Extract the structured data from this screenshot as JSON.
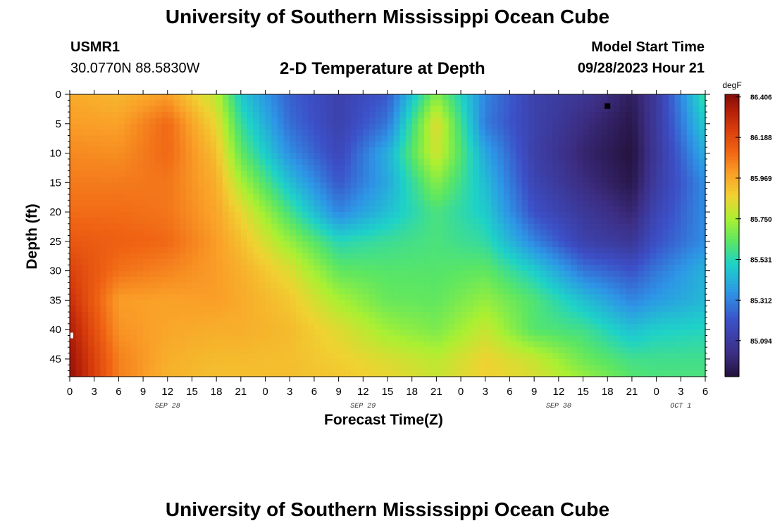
{
  "header": {
    "title": "University of Southern Mississippi Ocean Cube",
    "station_id": "USMR1",
    "coordinates": "30.0770N  88.5830W",
    "plot_title": "2-D Temperature at Depth",
    "model_start_label": "Model Start Time",
    "model_start_value": "09/28/2023 Hour 21"
  },
  "footer": {
    "title": "University of Southern Mississippi Ocean Cube"
  },
  "chart_data": {
    "type": "heatmap",
    "title": "2-D Temperature at Depth",
    "xlabel": "Forecast Time(Z)",
    "ylabel": "Depth (ft)",
    "xlim": [
      0,
      78
    ],
    "ylim": [
      48,
      0
    ],
    "x_tick_values": [
      0,
      3,
      6,
      9,
      12,
      15,
      18,
      21,
      24,
      27,
      30,
      33,
      36,
      39,
      42,
      45,
      48,
      51,
      54,
      57,
      60,
      63,
      66,
      69,
      72,
      75,
      78
    ],
    "x_tick_labels": [
      "0",
      "3",
      "6",
      "9",
      "12",
      "15",
      "18",
      "21",
      "0",
      "3",
      "6",
      "9",
      "12",
      "15",
      "18",
      "21",
      "0",
      "3",
      "6",
      "9",
      "12",
      "15",
      "18",
      "21",
      "0",
      "3",
      "6"
    ],
    "date_labels": [
      {
        "x": 12,
        "text": "SEP 28"
      },
      {
        "x": 36,
        "text": "SEP 29"
      },
      {
        "x": 60,
        "text": "SEP 30"
      },
      {
        "x": 75,
        "text": "OCT 1"
      }
    ],
    "y_ticks": [
      0,
      5,
      10,
      15,
      20,
      25,
      30,
      35,
      40,
      45
    ],
    "colorbar": {
      "unit": "degF",
      "min": 84.9,
      "max": 86.42,
      "ticks": [
        86.406,
        86.188,
        85.969,
        85.75,
        85.531,
        85.312,
        85.094
      ],
      "tick_labels": [
        "86.406",
        "86.188",
        "85.969",
        "85.750",
        "85.531",
        "85.312",
        "85.094"
      ]
    },
    "grid": false,
    "legend": "right",
    "times": [
      0,
      6,
      12,
      18,
      21,
      27,
      33,
      39,
      45,
      51,
      57,
      63,
      69,
      72,
      78
    ],
    "depths": [
      0,
      5,
      10,
      15,
      20,
      25,
      30,
      35,
      40,
      45,
      48
    ],
    "values": [
      [
        85.97,
        85.94,
        86.0,
        85.78,
        85.48,
        85.24,
        85.13,
        85.22,
        85.7,
        85.32,
        85.13,
        85.07,
        84.96,
        85.09,
        85.57
      ],
      [
        86.0,
        85.99,
        86.11,
        85.86,
        85.56,
        85.27,
        85.13,
        85.29,
        85.85,
        85.3,
        85.13,
        85.02,
        84.93,
        85.09,
        85.5
      ],
      [
        86.04,
        86.03,
        86.11,
        85.92,
        85.64,
        85.34,
        85.16,
        85.42,
        85.82,
        85.4,
        85.12,
        84.99,
        84.91,
        85.08,
        85.42
      ],
      [
        86.07,
        86.07,
        86.08,
        85.96,
        85.75,
        85.46,
        85.22,
        85.4,
        85.7,
        85.45,
        85.15,
        85.02,
        84.93,
        85.1,
        85.34
      ],
      [
        86.1,
        86.1,
        86.08,
        85.98,
        85.86,
        85.59,
        85.32,
        85.46,
        85.6,
        85.49,
        85.2,
        85.08,
        84.99,
        85.15,
        85.34
      ],
      [
        86.15,
        86.13,
        86.11,
        86.0,
        85.92,
        85.72,
        85.53,
        85.57,
        85.6,
        85.55,
        85.32,
        85.13,
        85.07,
        85.2,
        85.34
      ],
      [
        86.22,
        86.09,
        86.05,
        86.0,
        85.96,
        85.84,
        85.64,
        85.62,
        85.62,
        85.64,
        85.5,
        85.29,
        85.21,
        85.29,
        85.43
      ],
      [
        86.28,
        86.0,
        85.99,
        86.0,
        85.97,
        85.9,
        85.75,
        85.65,
        85.64,
        85.72,
        85.61,
        85.46,
        85.32,
        85.37,
        85.44
      ],
      [
        86.34,
        86.02,
        85.98,
        85.96,
        85.96,
        85.93,
        85.84,
        85.73,
        85.68,
        85.8,
        85.62,
        85.58,
        85.46,
        85.5,
        85.52
      ],
      [
        86.38,
        86.06,
        85.96,
        85.93,
        85.93,
        85.92,
        85.88,
        85.83,
        85.78,
        85.87,
        85.8,
        85.66,
        85.58,
        85.58,
        85.58
      ],
      [
        86.4,
        86.06,
        85.95,
        85.92,
        85.92,
        85.92,
        85.9,
        85.86,
        85.8,
        85.88,
        85.83,
        85.72,
        85.62,
        85.6,
        85.6
      ]
    ],
    "marker": {
      "x": 66,
      "y": 2,
      "color": "#000000"
    }
  }
}
